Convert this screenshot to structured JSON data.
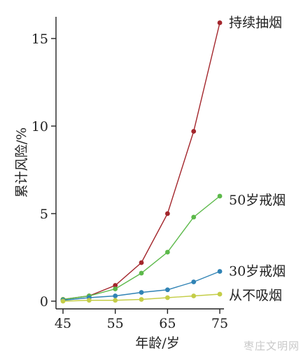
{
  "watermark": "枣庄文明网",
  "chart_data": {
    "type": "line",
    "xlabel": "年龄/岁",
    "ylabel": "累计风险/%",
    "x": [
      45,
      50,
      55,
      60,
      65,
      70,
      75
    ],
    "xticks": [
      45,
      55,
      65,
      75
    ],
    "yticks": [
      0,
      5,
      10,
      15
    ],
    "xlim": [
      45,
      75
    ],
    "ylim": [
      0,
      16
    ],
    "grid": false,
    "legend": "direct labels at right end of each line",
    "series": [
      {
        "name": "持续抽烟",
        "color": "#a3262c",
        "values": [
          0.1,
          0.3,
          0.9,
          2.2,
          5.0,
          9.7,
          15.9
        ]
      },
      {
        "name": "50岁戒烟",
        "color": "#5cb94a",
        "values": [
          0.1,
          0.3,
          0.7,
          1.6,
          2.8,
          4.8,
          6.0
        ]
      },
      {
        "name": "30岁戒烟",
        "color": "#3083b5",
        "values": [
          0.05,
          0.2,
          0.3,
          0.5,
          0.65,
          1.1,
          1.7
        ]
      },
      {
        "name": "从不吸烟",
        "color": "#c4cd47",
        "values": [
          0.0,
          0.05,
          0.05,
          0.1,
          0.2,
          0.3,
          0.4
        ]
      }
    ]
  }
}
